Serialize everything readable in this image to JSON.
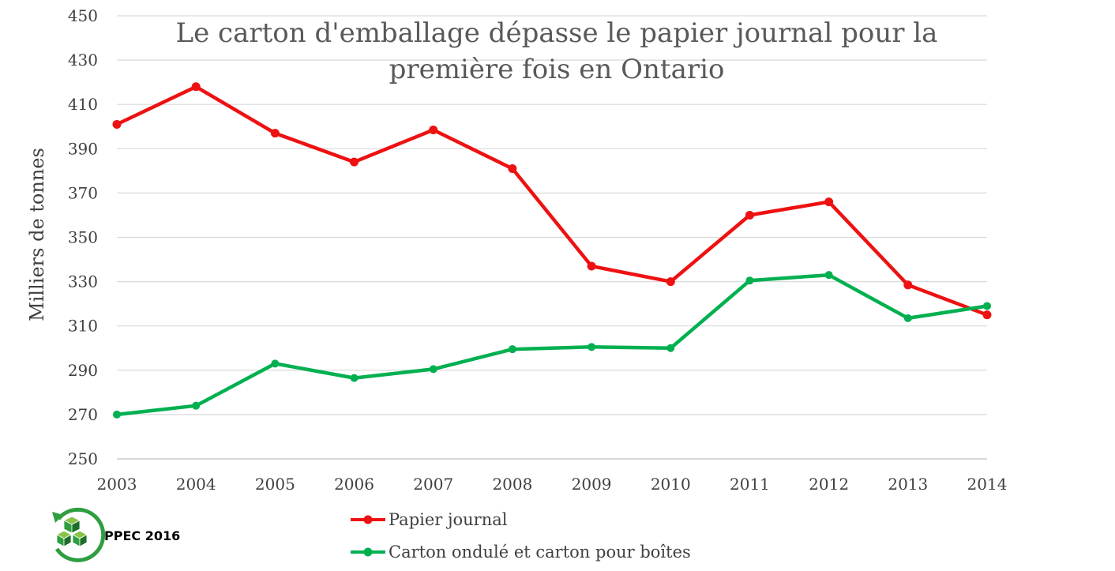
{
  "chart_data": {
    "type": "line",
    "title": "Le carton d'emballage dépasse le papier journal pour la première fois en Ontario",
    "title_lines": [
      "Le carton d'emballage dépasse le papier journal pour la",
      "première fois en Ontario"
    ],
    "ylabel": "Milliers de tonnes",
    "xlabel": "",
    "x": [
      "2003",
      "2004",
      "2005",
      "2006",
      "2007",
      "2008",
      "2009",
      "2010",
      "2011",
      "2012",
      "2013",
      "2014"
    ],
    "ylim": [
      250,
      450
    ],
    "yticks": [
      "250",
      "270",
      "290",
      "310",
      "330",
      "350",
      "370",
      "390",
      "410",
      "430",
      "450"
    ],
    "grid": true,
    "legend_position": "bottom",
    "series": [
      {
        "name": "Papier journal",
        "color": "#ee1111",
        "values": [
          401,
          418,
          397,
          384,
          398.5,
          381,
          337,
          330,
          360,
          366,
          328.5,
          315
        ]
      },
      {
        "name": "Carton ondulé et carton pour boîtes",
        "color": "#00b050",
        "values": [
          270,
          274,
          293,
          286.5,
          290.5,
          299.5,
          300.5,
          300,
          330.5,
          333,
          313.5,
          319
        ]
      }
    ]
  },
  "logo": {
    "text": "PPEC 2016",
    "icon": "recycle-cubes-icon",
    "color": "#2e9e3f"
  }
}
